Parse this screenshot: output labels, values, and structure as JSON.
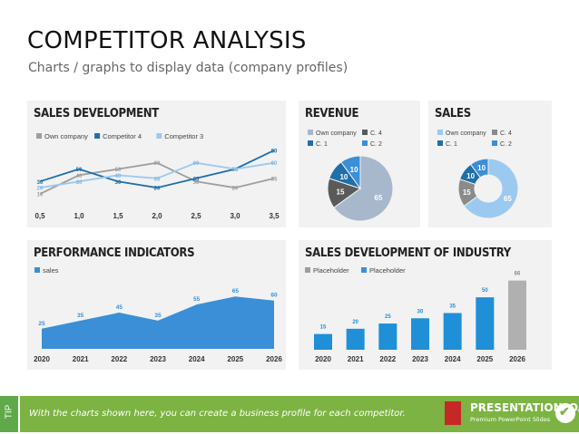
{
  "page": {
    "title": "COMPETITOR ANALYSIS",
    "subtitle": "Charts / graphs to display data (company profiles)"
  },
  "panels": {
    "sales_development": "SALES DEVELOPMENT",
    "revenue": "REVENUE",
    "sales": "SALES",
    "performance": "PERFORMANCE INDICATORS",
    "industry": "SALES DEVELOPMENT OF INDUSTRY"
  },
  "footer": {
    "tip": "TIP",
    "text": "With the charts shown here, you can create a business profile for each competitor.",
    "logo_name": "PRESENTATIONLOAD",
    "logo_tag": "Premium PowerPoint Slides"
  },
  "colors": {
    "dark_blue": "#1f6fa8",
    "blue": "#3a8fd6",
    "light_blue": "#9cc9ef",
    "gray": "#9e9e9e",
    "dark_gray": "#5a5a5a",
    "light_gray": "#bdbdbd",
    "green": "#7cb342"
  },
  "chart_data": [
    {
      "id": "sales-development",
      "type": "line",
      "x": [
        0.5,
        1.0,
        1.5,
        2.0,
        2.5,
        3.0,
        3.5
      ],
      "tick_labels": [
        "0,5",
        "1,0",
        "1,5",
        "2,0",
        "2,5",
        "3,0",
        "3,5"
      ],
      "series": [
        {
          "name": "Own company",
          "color": "#9e9e9e",
          "values": [
            10,
            40,
            50,
            60,
            30,
            20,
            35
          ]
        },
        {
          "name": "Competitor 4",
          "color": "#1f6fa8",
          "values": [
            30,
            50,
            30,
            20,
            35,
            50,
            80
          ]
        },
        {
          "name": "Competitor 3",
          "color": "#9cc9ef",
          "values": [
            20,
            30,
            40,
            35,
            60,
            50,
            60
          ]
        }
      ],
      "ylim": [
        0,
        90
      ]
    },
    {
      "id": "revenue",
      "type": "pie",
      "legend": [
        "Own company",
        "C. 4",
        "C. 1",
        "C. 2"
      ],
      "slices": [
        {
          "name": "Own company",
          "value": 65,
          "color": "#a7b8cc"
        },
        {
          "name": "C. 4",
          "value": 15,
          "color": "#5a5a5a"
        },
        {
          "name": "C. 1",
          "value": 10,
          "color": "#1f6fa8"
        },
        {
          "name": "C. 2",
          "value": 10,
          "color": "#3a8fd6"
        }
      ]
    },
    {
      "id": "sales",
      "type": "pie",
      "donut": true,
      "legend": [
        "Own company",
        "C. 4",
        "C. 1",
        "C. 2"
      ],
      "slices": [
        {
          "name": "Own company",
          "value": 65,
          "color": "#9cc9ef"
        },
        {
          "name": "C. 4",
          "value": 15,
          "color": "#8a8a8a"
        },
        {
          "name": "C. 1",
          "value": 10,
          "color": "#1f6fa8"
        },
        {
          "name": "C. 2",
          "value": 10,
          "color": "#3a8fd6"
        }
      ]
    },
    {
      "id": "performance",
      "type": "area",
      "categories": [
        "2020",
        "2021",
        "2022",
        "2023",
        "2024",
        "2025",
        "2026"
      ],
      "series": [
        {
          "name": "sales",
          "color": "#3a8fd6",
          "values": [
            25,
            35,
            45,
            35,
            55,
            65,
            60
          ]
        }
      ],
      "ylim": [
        0,
        90
      ]
    },
    {
      "id": "industry",
      "type": "bar",
      "categories": [
        "2020",
        "2021",
        "2022",
        "2023",
        "2024",
        "2025",
        "2026"
      ],
      "legend": [
        "Placeholder",
        "Placeholder"
      ],
      "values": [
        15,
        20,
        25,
        30,
        35,
        50,
        66
      ],
      "colors": [
        "#1f8fd8",
        "#1f8fd8",
        "#1f8fd8",
        "#1f8fd8",
        "#1f8fd8",
        "#1f8fd8",
        "#b0b0b0"
      ],
      "ylim": [
        0,
        70
      ]
    }
  ]
}
